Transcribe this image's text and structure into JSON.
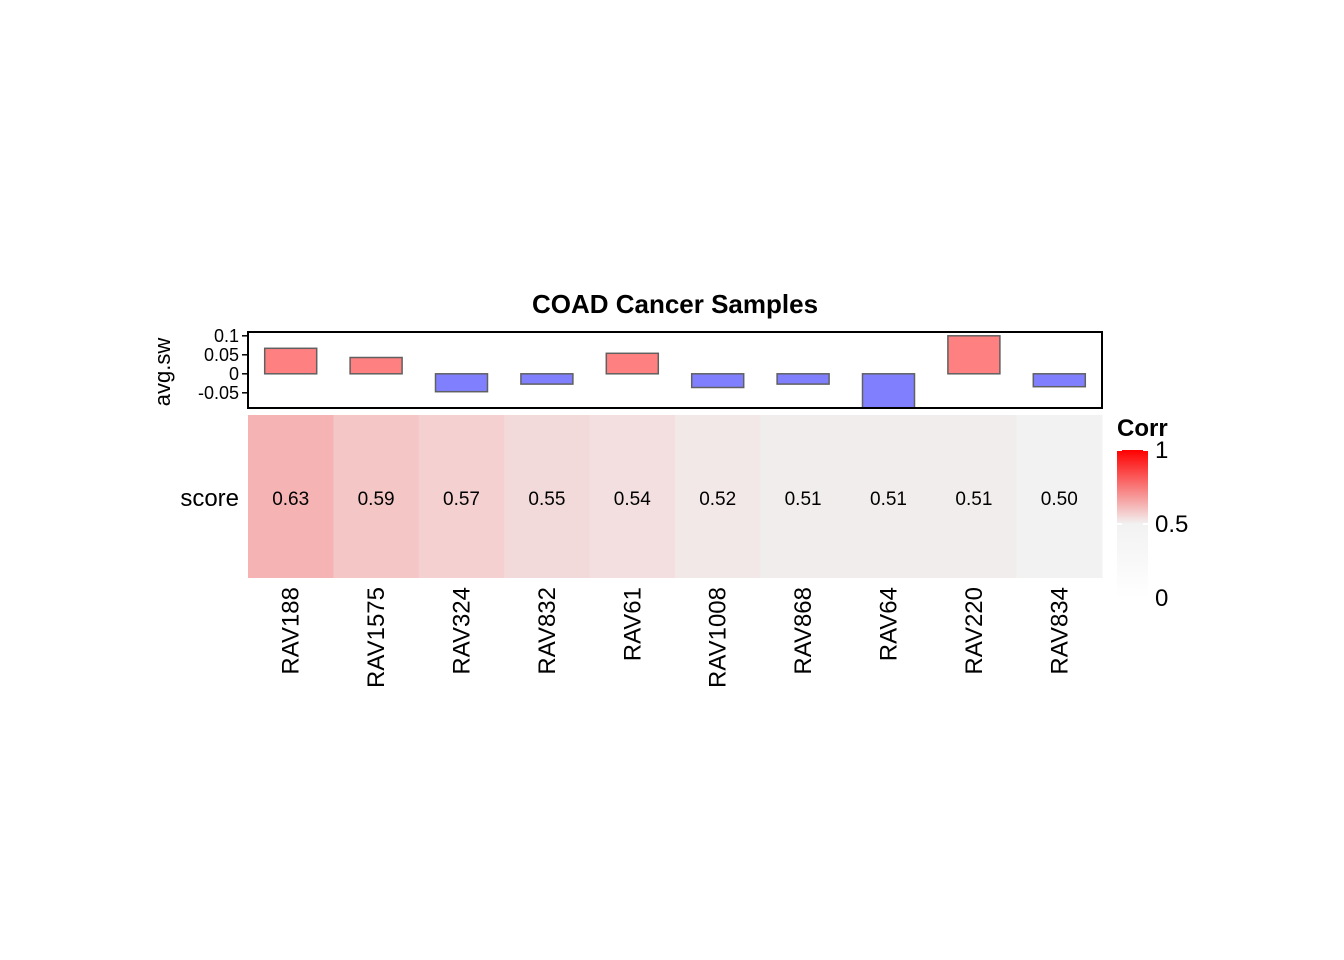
{
  "chart_data": {
    "type": "heatmap",
    "title": "COAD Cancer Samples",
    "categories": [
      "RAV188",
      "RAV1575",
      "RAV324",
      "RAV832",
      "RAV61",
      "RAV1008",
      "RAV868",
      "RAV64",
      "RAV220",
      "RAV834"
    ],
    "row_label": "score",
    "values": [
      0.63,
      0.59,
      0.57,
      0.55,
      0.54,
      0.52,
      0.51,
      0.51,
      0.51,
      0.5
    ],
    "value_labels": [
      "0.63",
      "0.59",
      "0.57",
      "0.55",
      "0.54",
      "0.52",
      "0.51",
      "0.51",
      "0.51",
      "0.50"
    ],
    "annotation": {
      "type": "bar",
      "ylabel": "avg.sw",
      "ylim": [
        -0.09,
        0.11
      ],
      "ticks": [
        0.1,
        0.05,
        0,
        -0.05
      ],
      "tick_labels": [
        "0.1",
        "0.05",
        "0",
        "-0.05"
      ],
      "values": [
        0.067,
        0.043,
        -0.047,
        -0.027,
        0.054,
        -0.036,
        -0.027,
        -0.09,
        0.1,
        -0.034
      ],
      "positive_color": "#FF8080",
      "negative_color": "#8080FF",
      "border_color": "#606060"
    },
    "legend": {
      "title": "Corr",
      "ticks": [
        1,
        0.5,
        0
      ],
      "tick_labels": [
        "1",
        "0.5",
        "0"
      ],
      "colors": {
        "low": "#FFFFFF",
        "mid": "#F2F2F2",
        "high": "#FF0000"
      },
      "placement": "right"
    }
  }
}
